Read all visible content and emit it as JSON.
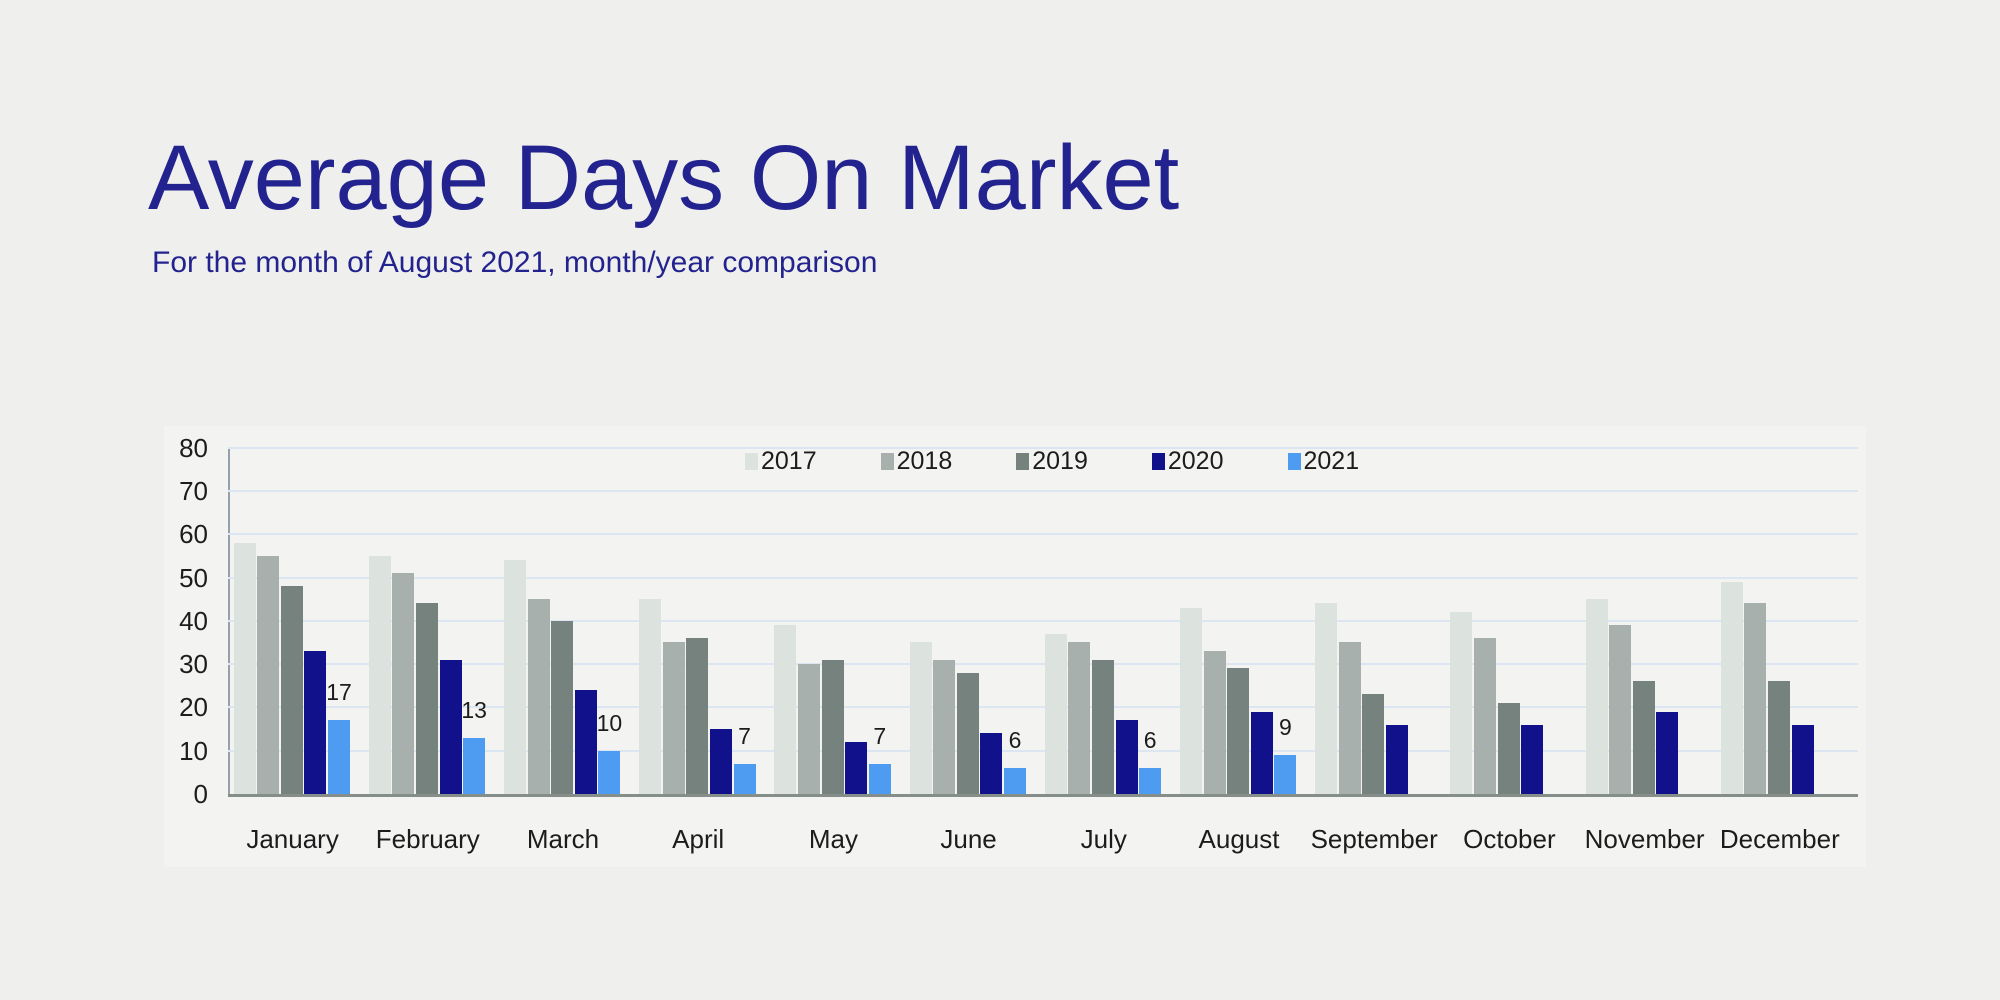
{
  "title": "Average Days On Market",
  "subtitle": "For the month of August 2021, month/year comparison",
  "colors": {
    "background": "#efefed",
    "panel": "#f3f4f2",
    "title_text": "#23238f",
    "axis_text": "#1c1c1c",
    "gridline": "#dce6f2",
    "y_axis_line": "#94a1a8",
    "x_axis_line": "#868e89",
    "series": {
      "2017": "#dce3df",
      "2018": "#a7b0ac",
      "2019": "#76827e",
      "2020": "#11118c",
      "2021": "#4d9cf2"
    }
  },
  "chart_data": {
    "type": "bar",
    "title": "Average Days On Market",
    "subtitle": "For the month of August 2021, month/year comparison",
    "categories": [
      "January",
      "February",
      "March",
      "April",
      "May",
      "June",
      "July",
      "August",
      "September",
      "October",
      "November",
      "December"
    ],
    "series": [
      {
        "name": "2017",
        "values": [
          58,
          55,
          54,
          45,
          39,
          35,
          37,
          43,
          44,
          42,
          45,
          49
        ]
      },
      {
        "name": "2018",
        "values": [
          55,
          51,
          45,
          35,
          30,
          31,
          35,
          33,
          35,
          36,
          39,
          44
        ]
      },
      {
        "name": "2019",
        "values": [
          48,
          44,
          40,
          36,
          31,
          28,
          31,
          29,
          23,
          21,
          26,
          26
        ]
      },
      {
        "name": "2020",
        "values": [
          33,
          31,
          24,
          15,
          12,
          14,
          17,
          19,
          16,
          16,
          19,
          16
        ]
      },
      {
        "name": "2021",
        "values": [
          17,
          13,
          10,
          7,
          7,
          6,
          6,
          9,
          null,
          null,
          null,
          null
        ],
        "data_labels": true
      }
    ],
    "ylim": [
      0,
      80
    ],
    "ytick_step": 10,
    "grid": "horizontal",
    "legend_position": "top-center",
    "legend_entries": [
      "2017",
      "2018",
      "2019",
      "2020",
      "2021"
    ]
  }
}
